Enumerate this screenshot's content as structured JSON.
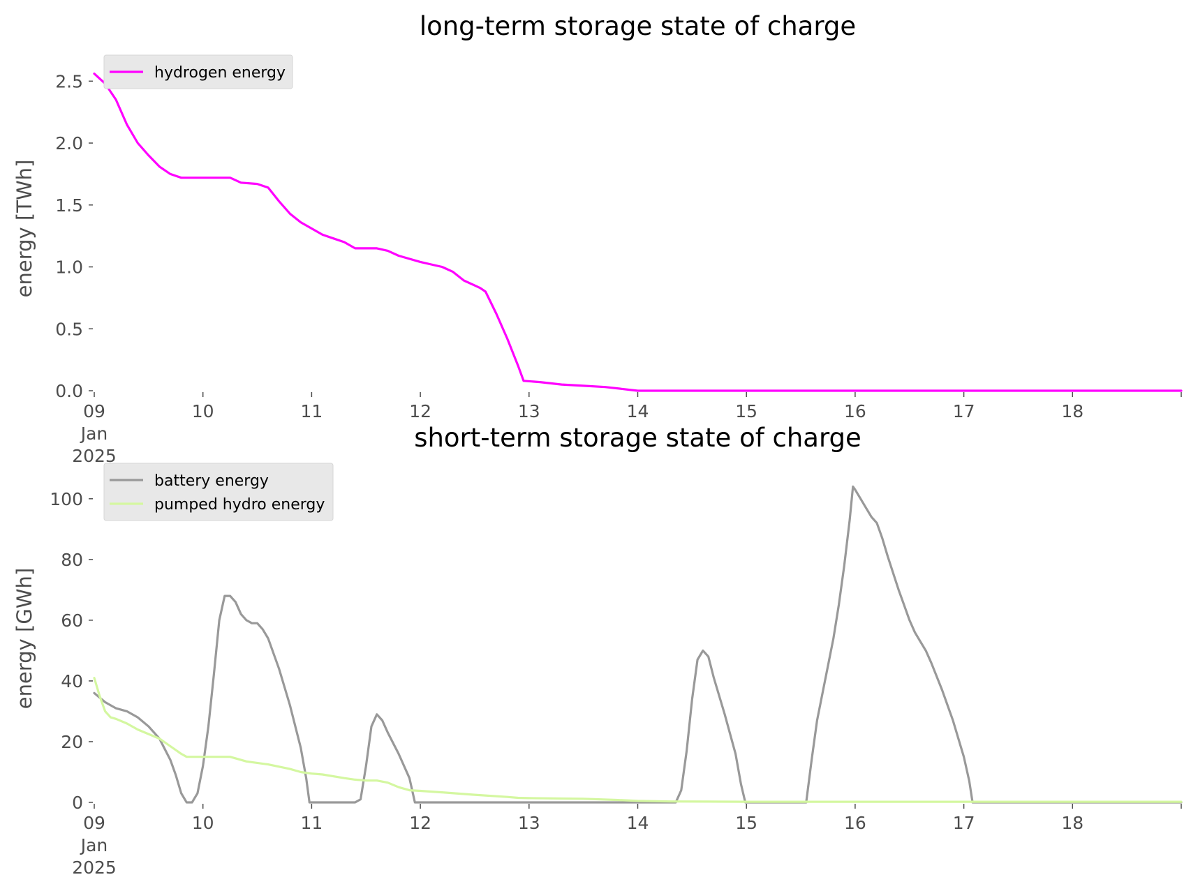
{
  "chart_data": [
    {
      "type": "line",
      "title": "long-term storage state of charge",
      "ylabel": "energy [TWh]",
      "xlabel": "",
      "x_unit": "days (January 2025)",
      "xlim": [
        9,
        19
      ],
      "ylim": [
        0,
        2.62
      ],
      "x_ticks": [
        {
          "value": 9,
          "label": "09"
        },
        {
          "value": 10,
          "label": "10"
        },
        {
          "value": 11,
          "label": "11"
        },
        {
          "value": 12,
          "label": "12"
        },
        {
          "value": 13,
          "label": "13"
        },
        {
          "value": 14,
          "label": "14"
        },
        {
          "value": 15,
          "label": "15"
        },
        {
          "value": 16,
          "label": "16"
        },
        {
          "value": 17,
          "label": "17"
        },
        {
          "value": 18,
          "label": "18"
        }
      ],
      "x_subtick_lines": [
        "Jan",
        "2025"
      ],
      "y_ticks": [
        {
          "value": 0,
          "label": "0.0"
        },
        {
          "value": 0.5,
          "label": "0.5"
        },
        {
          "value": 1.0,
          "label": "1.0"
        },
        {
          "value": 1.5,
          "label": "1.5"
        },
        {
          "value": 2.0,
          "label": "2.0"
        },
        {
          "value": 2.5,
          "label": "2.5"
        }
      ],
      "grid": false,
      "legend": "top-left",
      "series": [
        {
          "name": "hydrogen energy",
          "color": "#ff00ff",
          "points": [
            [
              9.0,
              2.56
            ],
            [
              9.1,
              2.48
            ],
            [
              9.2,
              2.35
            ],
            [
              9.3,
              2.15
            ],
            [
              9.4,
              2.0
            ],
            [
              9.5,
              1.9
            ],
            [
              9.6,
              1.81
            ],
            [
              9.7,
              1.75
            ],
            [
              9.8,
              1.72
            ],
            [
              9.9,
              1.72
            ],
            [
              10.0,
              1.72
            ],
            [
              10.1,
              1.72
            ],
            [
              10.25,
              1.72
            ],
            [
              10.35,
              1.68
            ],
            [
              10.5,
              1.67
            ],
            [
              10.6,
              1.64
            ],
            [
              10.7,
              1.53
            ],
            [
              10.8,
              1.43
            ],
            [
              10.9,
              1.36
            ],
            [
              11.0,
              1.31
            ],
            [
              11.1,
              1.26
            ],
            [
              11.2,
              1.23
            ],
            [
              11.3,
              1.2
            ],
            [
              11.4,
              1.15
            ],
            [
              11.5,
              1.15
            ],
            [
              11.6,
              1.15
            ],
            [
              11.7,
              1.13
            ],
            [
              11.8,
              1.09
            ],
            [
              12.0,
              1.04
            ],
            [
              12.1,
              1.02
            ],
            [
              12.2,
              1.0
            ],
            [
              12.3,
              0.96
            ],
            [
              12.4,
              0.89
            ],
            [
              12.5,
              0.85
            ],
            [
              12.55,
              0.83
            ],
            [
              12.6,
              0.8
            ],
            [
              12.7,
              0.62
            ],
            [
              12.8,
              0.42
            ],
            [
              12.9,
              0.2
            ],
            [
              12.95,
              0.08
            ],
            [
              13.1,
              0.07
            ],
            [
              13.3,
              0.05
            ],
            [
              13.5,
              0.04
            ],
            [
              13.7,
              0.03
            ],
            [
              13.85,
              0.015
            ],
            [
              13.95,
              0.005
            ],
            [
              14.0,
              0.0
            ],
            [
              15.0,
              0.0
            ],
            [
              16.0,
              0.0
            ],
            [
              17.0,
              0.0
            ],
            [
              18.0,
              0.0
            ],
            [
              19.0,
              0.0
            ]
          ]
        }
      ]
    },
    {
      "type": "line",
      "title": "short-term storage state of charge",
      "ylabel": "energy [GWh]",
      "xlabel": "",
      "x_unit": "days (January 2025)",
      "xlim": [
        9,
        19
      ],
      "ylim": [
        0,
        108
      ],
      "x_ticks": [
        {
          "value": 9,
          "label": "09"
        },
        {
          "value": 10,
          "label": "10"
        },
        {
          "value": 11,
          "label": "11"
        },
        {
          "value": 12,
          "label": "12"
        },
        {
          "value": 13,
          "label": "13"
        },
        {
          "value": 14,
          "label": "14"
        },
        {
          "value": 15,
          "label": "15"
        },
        {
          "value": 16,
          "label": "16"
        },
        {
          "value": 17,
          "label": "17"
        },
        {
          "value": 18,
          "label": "18"
        }
      ],
      "x_subtick_lines": [
        "Jan",
        "2025"
      ],
      "y_ticks": [
        {
          "value": 0,
          "label": "0"
        },
        {
          "value": 20,
          "label": "20"
        },
        {
          "value": 40,
          "label": "40"
        },
        {
          "value": 60,
          "label": "60"
        },
        {
          "value": 80,
          "label": "80"
        },
        {
          "value": 100,
          "label": "100"
        }
      ],
      "grid": false,
      "legend": "top-left",
      "series": [
        {
          "name": "battery energy",
          "color": "#999999",
          "points": [
            [
              9.0,
              36
            ],
            [
              9.1,
              33
            ],
            [
              9.2,
              31
            ],
            [
              9.3,
              30
            ],
            [
              9.4,
              28
            ],
            [
              9.5,
              25
            ],
            [
              9.6,
              21
            ],
            [
              9.7,
              14
            ],
            [
              9.75,
              9
            ],
            [
              9.8,
              3
            ],
            [
              9.85,
              0
            ],
            [
              9.9,
              0
            ],
            [
              9.95,
              3
            ],
            [
              10.0,
              12
            ],
            [
              10.05,
              25
            ],
            [
              10.1,
              42
            ],
            [
              10.15,
              60
            ],
            [
              10.2,
              68
            ],
            [
              10.25,
              68
            ],
            [
              10.3,
              66
            ],
            [
              10.35,
              62
            ],
            [
              10.4,
              60
            ],
            [
              10.45,
              59
            ],
            [
              10.5,
              59
            ],
            [
              10.55,
              57
            ],
            [
              10.6,
              54
            ],
            [
              10.7,
              44
            ],
            [
              10.8,
              32
            ],
            [
              10.9,
              18
            ],
            [
              10.95,
              8
            ],
            [
              10.98,
              0
            ],
            [
              11.0,
              0
            ],
            [
              11.4,
              0
            ],
            [
              11.45,
              1
            ],
            [
              11.5,
              12
            ],
            [
              11.55,
              25
            ],
            [
              11.6,
              29
            ],
            [
              11.65,
              27
            ],
            [
              11.7,
              23
            ],
            [
              11.8,
              16
            ],
            [
              11.9,
              8
            ],
            [
              11.95,
              0
            ],
            [
              12.0,
              0
            ],
            [
              13.0,
              0
            ],
            [
              14.0,
              0
            ],
            [
              14.35,
              0
            ],
            [
              14.4,
              4
            ],
            [
              14.45,
              17
            ],
            [
              14.5,
              34
            ],
            [
              14.55,
              47
            ],
            [
              14.6,
              50
            ],
            [
              14.65,
              48
            ],
            [
              14.7,
              41
            ],
            [
              14.8,
              29
            ],
            [
              14.9,
              16
            ],
            [
              14.95,
              6
            ],
            [
              14.99,
              0
            ],
            [
              15.0,
              0
            ],
            [
              15.55,
              0
            ],
            [
              15.6,
              14
            ],
            [
              15.65,
              27
            ],
            [
              15.7,
              36
            ],
            [
              15.75,
              45
            ],
            [
              15.8,
              54
            ],
            [
              15.85,
              65
            ],
            [
              15.9,
              78
            ],
            [
              15.95,
              93
            ],
            [
              15.98,
              104
            ],
            [
              16.0,
              103
            ],
            [
              16.05,
              100
            ],
            [
              16.1,
              97
            ],
            [
              16.15,
              94
            ],
            [
              16.2,
              92
            ],
            [
              16.25,
              87
            ],
            [
              16.3,
              81
            ],
            [
              16.4,
              70
            ],
            [
              16.45,
              65
            ],
            [
              16.5,
              60
            ],
            [
              16.55,
              56
            ],
            [
              16.6,
              53
            ],
            [
              16.65,
              50
            ],
            [
              16.7,
              46
            ],
            [
              16.8,
              37
            ],
            [
              16.9,
              27
            ],
            [
              17.0,
              15
            ],
            [
              17.05,
              7
            ],
            [
              17.08,
              0
            ],
            [
              17.1,
              0
            ],
            [
              18.0,
              0
            ],
            [
              19.0,
              0
            ]
          ]
        },
        {
          "name": "pumped hydro energy",
          "color": "#d4f7a0",
          "points": [
            [
              9.0,
              41
            ],
            [
              9.05,
              35
            ],
            [
              9.1,
              30
            ],
            [
              9.15,
              28
            ],
            [
              9.2,
              27.5
            ],
            [
              9.3,
              26
            ],
            [
              9.4,
              24
            ],
            [
              9.5,
              22.5
            ],
            [
              9.6,
              21
            ],
            [
              9.7,
              18.5
            ],
            [
              9.8,
              16
            ],
            [
              9.85,
              15
            ],
            [
              10.0,
              15
            ],
            [
              10.25,
              15
            ],
            [
              10.4,
              13.5
            ],
            [
              10.6,
              12.5
            ],
            [
              10.8,
              11
            ],
            [
              10.9,
              10
            ],
            [
              11.0,
              9.5
            ],
            [
              11.1,
              9.2
            ],
            [
              11.3,
              8
            ],
            [
              11.4,
              7.5
            ],
            [
              11.5,
              7.2
            ],
            [
              11.6,
              7.2
            ],
            [
              11.7,
              6.5
            ],
            [
              11.8,
              5
            ],
            [
              11.9,
              4
            ],
            [
              12.0,
              3.8
            ],
            [
              12.2,
              3.3
            ],
            [
              12.5,
              2.5
            ],
            [
              12.8,
              1.8
            ],
            [
              12.9,
              1.5
            ],
            [
              13.0,
              1.4
            ],
            [
              13.5,
              1.2
            ],
            [
              13.8,
              0.8
            ],
            [
              14.0,
              0.5
            ],
            [
              14.3,
              0.3
            ],
            [
              15.0,
              0.2
            ],
            [
              16.0,
              0.2
            ],
            [
              17.0,
              0.2
            ],
            [
              18.0,
              0.2
            ],
            [
              19.0,
              0.2
            ]
          ]
        }
      ]
    }
  ]
}
